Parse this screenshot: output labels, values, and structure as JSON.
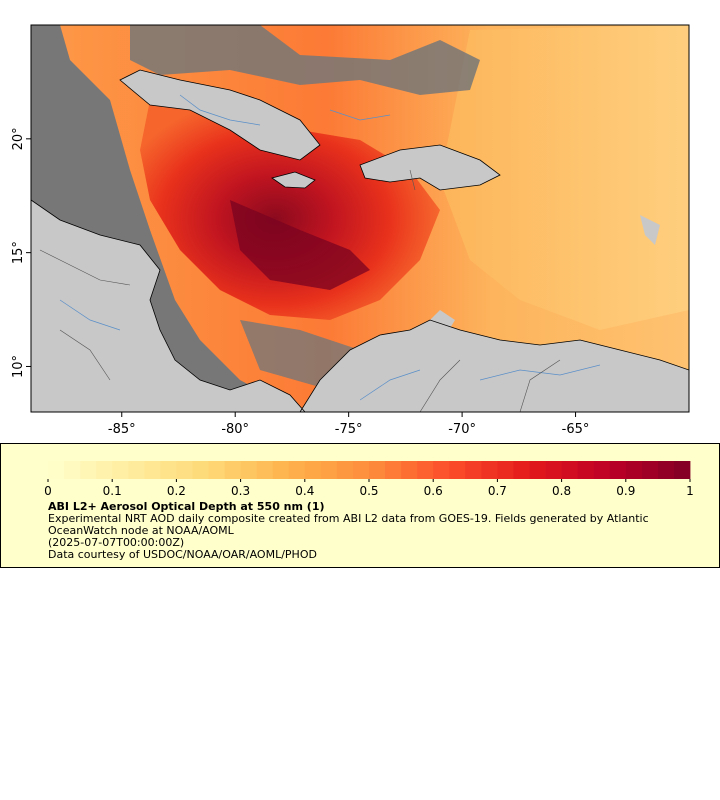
{
  "map": {
    "x_ticks": [
      "-85°",
      "-80°",
      "-75°",
      "-70°",
      "-65°"
    ],
    "y_ticks": [
      "20°",
      "15°",
      "10°"
    ],
    "x_tick_values": [
      -85,
      -80,
      -75,
      -70,
      -65
    ],
    "y_tick_values": [
      20,
      15,
      10
    ],
    "lon_range": [
      -89,
      -60
    ],
    "lat_range": [
      8,
      25
    ],
    "colors": {
      "land": "#c8c8c8",
      "no_data": "#777777",
      "coast": "#000000",
      "rivers": "#5a8fc8",
      "borders": "#555555"
    }
  },
  "legend": {
    "colorbar_labels": [
      "0",
      "0.1",
      "0.2",
      "0.3",
      "0.4",
      "0.5",
      "0.6",
      "0.7",
      "0.8",
      "0.9",
      "1"
    ],
    "colorbar_range": [
      0,
      1
    ],
    "colorbar_colors": [
      "#ffffcc",
      "#ffeda0",
      "#fed976",
      "#feb24c",
      "#fd8d3c",
      "#fc4e2a",
      "#e31a1c",
      "#bd0026",
      "#800026"
    ],
    "title": "ABI L2+ Aerosol Optical Depth at 550 nm (1)",
    "line1": "Experimental NRT AOD daily composite created from ABI L2 data from GOES-19. Fields generated by Atlantic OceanWatch node at NOAA/AOML",
    "line2": "(2025-07-07T00:00:00Z)",
    "line3": "Data courtesy of USDOC/NOAA/OAR/AOML/PHOD"
  }
}
